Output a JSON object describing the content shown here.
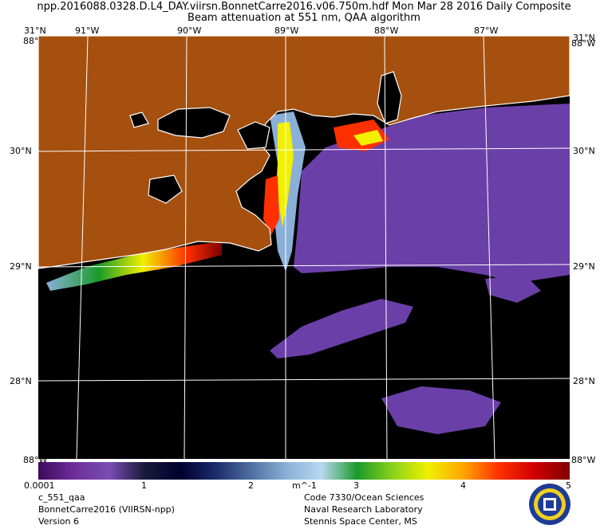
{
  "header": {
    "line1": "npp.2016088.0328.D.L4_DAY.viirsn.BonnetCarre2016.v06.750m.hdf    Mon Mar 28 2016 Daily Composite",
    "line2": "Beam attenuation at 551 nm, QAA algorithm"
  },
  "map": {
    "top_labels": [
      "31°N",
      "91°W",
      "90°W",
      "89°W",
      "88°W",
      "87°W",
      "31°N"
    ],
    "corner_labels": [
      "88°W",
      "88°W",
      "88°W",
      "88°W"
    ],
    "lat_labels_left": [
      "30°N",
      "29°N",
      "28°N"
    ],
    "lat_labels_right": [
      "30°N",
      "29°N",
      "28°N"
    ],
    "colors": {
      "land": "#a5500f",
      "no_data": "#000000",
      "grid": "#ffffff"
    }
  },
  "colorbar": {
    "ticks": [
      "0.0001",
      "1",
      "2",
      "3",
      "4",
      "5"
    ],
    "unit": "m^-1",
    "stops": [
      "#3d0a5c",
      "#6d2d99",
      "#7a4db5",
      "#1a1a3a",
      "#000030",
      "#1b2b6b",
      "#4e6fa0",
      "#8ab0d8",
      "#b8d8f0",
      "#1a9a2a",
      "#8ad21a",
      "#f0f000",
      "#ffa500",
      "#ff3000",
      "#d00000",
      "#800000"
    ]
  },
  "footer": {
    "left": [
      "c_551_qaa",
      "BonnetCarre2016 (VIIRSN-npp)",
      "Version 6"
    ],
    "right": [
      "Code 7330/Ocean Sciences",
      "Naval Research Laboratory",
      "Stennis Space Center, MS"
    ]
  }
}
